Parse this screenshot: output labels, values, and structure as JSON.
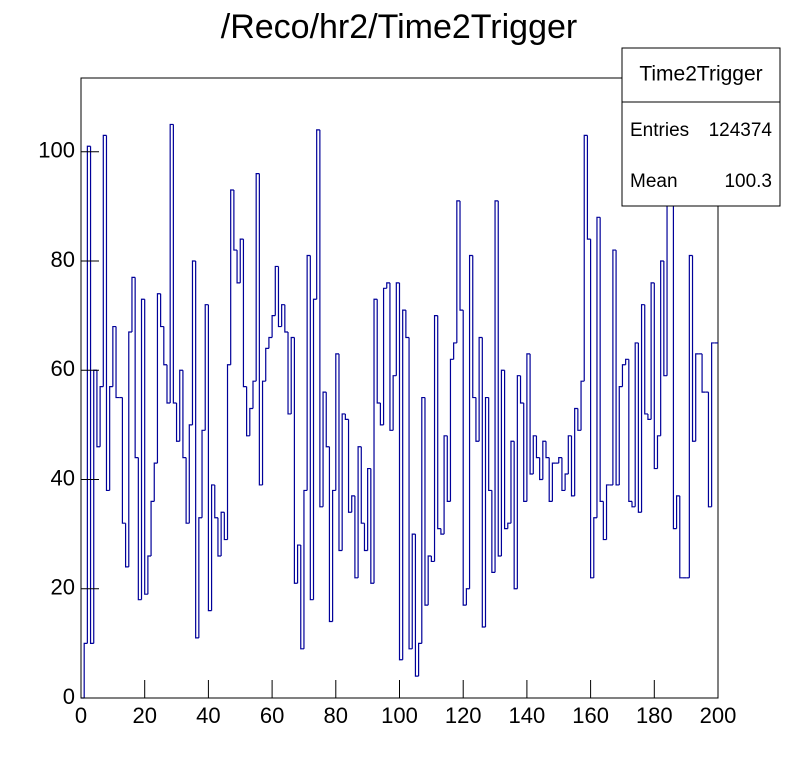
{
  "chart_data": {
    "type": "histogram",
    "title": "/Reco/hr2/Time2Trigger",
    "color": "#000099",
    "bins": [
      0,
      1,
      2,
      3,
      4,
      5,
      6,
      7,
      8,
      9,
      10,
      11,
      12,
      13,
      14,
      15,
      16,
      17,
      18,
      19,
      20,
      21,
      22,
      23,
      24,
      25,
      26,
      27,
      28,
      29,
      30,
      31,
      32,
      33,
      34,
      35,
      36,
      37,
      38,
      39,
      40,
      41,
      42,
      43,
      44,
      45,
      46,
      47,
      48,
      49,
      50,
      51,
      52,
      53,
      54,
      55,
      56,
      57,
      58,
      59,
      60,
      61,
      62,
      63,
      64,
      65,
      66,
      67,
      68,
      69,
      70,
      71,
      72,
      73,
      74,
      75,
      76,
      77,
      78,
      79,
      80,
      81,
      82,
      83,
      84,
      85,
      86,
      87,
      88,
      89,
      90,
      91,
      92,
      93,
      94,
      95,
      96,
      97,
      98,
      99,
      100,
      101,
      102,
      103,
      104,
      105,
      106,
      107,
      108,
      109,
      110,
      111,
      112,
      113,
      114,
      115,
      116,
      117,
      118,
      119,
      120,
      121,
      122,
      123,
      124,
      125,
      126,
      127,
      128,
      129,
      130,
      131,
      132,
      133,
      134,
      135,
      136,
      137,
      138,
      139,
      140,
      141,
      142,
      143,
      144,
      145,
      146,
      147,
      148,
      149,
      150,
      151,
      152,
      153,
      154,
      155,
      156,
      157,
      158,
      159,
      160,
      161,
      162,
      163,
      164,
      165,
      166,
      167,
      168,
      169,
      170,
      171,
      172,
      173,
      174,
      175,
      176,
      177,
      178,
      179,
      180,
      181,
      182,
      183,
      184,
      185,
      186,
      187,
      188,
      189,
      190,
      191,
      192,
      193,
      194,
      195,
      196,
      197,
      198,
      199,
      200
    ],
    "values": [
      0,
      10,
      101,
      10,
      60,
      46,
      57,
      103,
      38,
      57,
      68,
      55,
      55,
      32,
      24,
      67,
      77,
      44,
      18,
      73,
      19,
      26,
      36,
      43,
      74,
      68,
      61,
      54,
      105,
      54,
      47,
      60,
      44,
      32,
      50,
      80,
      11,
      33,
      49,
      72,
      16,
      39,
      33,
      26,
      34,
      29,
      61,
      93,
      82,
      76,
      84,
      57,
      48,
      53,
      58,
      96,
      39,
      58,
      64,
      66,
      70,
      79,
      68,
      72,
      67,
      52,
      66,
      21,
      28,
      9,
      38,
      81,
      18,
      73,
      104,
      35,
      56,
      46,
      14,
      38,
      63,
      27,
      52,
      51,
      34,
      37,
      22,
      46,
      32,
      27,
      42,
      21,
      73,
      54,
      50,
      75,
      76,
      49,
      59,
      76,
      7,
      71,
      66,
      9,
      30,
      4,
      10,
      55,
      17,
      26,
      25,
      70,
      31,
      30,
      48,
      36,
      62,
      65,
      91,
      71,
      17,
      20,
      81,
      55,
      47,
      66,
      13,
      55,
      38,
      23,
      91,
      26,
      60,
      31,
      32,
      47,
      20,
      59,
      54,
      36,
      63,
      41,
      48,
      44,
      40,
      47,
      44,
      36,
      43,
      43,
      44,
      38,
      41,
      48,
      37,
      53,
      49,
      58,
      103,
      84,
      22,
      33,
      88,
      36,
      29,
      39,
      39,
      82,
      39,
      57,
      61,
      62,
      36,
      35,
      65,
      34,
      72,
      52,
      51,
      76,
      42,
      48,
      80,
      59,
      91,
      104,
      31,
      37,
      22,
      22,
      22,
      81,
      47,
      63,
      63,
      56,
      56,
      35,
      65,
      65
    ],
    "xlim": [
      0,
      200
    ],
    "xticks": [
      0,
      20,
      40,
      60,
      80,
      100,
      120,
      140,
      160,
      180,
      200
    ],
    "ylim": [
      0,
      113.5
    ],
    "yticks": [
      0,
      20,
      40,
      60,
      80,
      100
    ],
    "stats": {
      "title": "Time2Trigger",
      "rows": [
        {
          "label": "Entries",
          "value": "124374"
        },
        {
          "label": "Mean",
          "value": "100.3"
        }
      ]
    }
  }
}
